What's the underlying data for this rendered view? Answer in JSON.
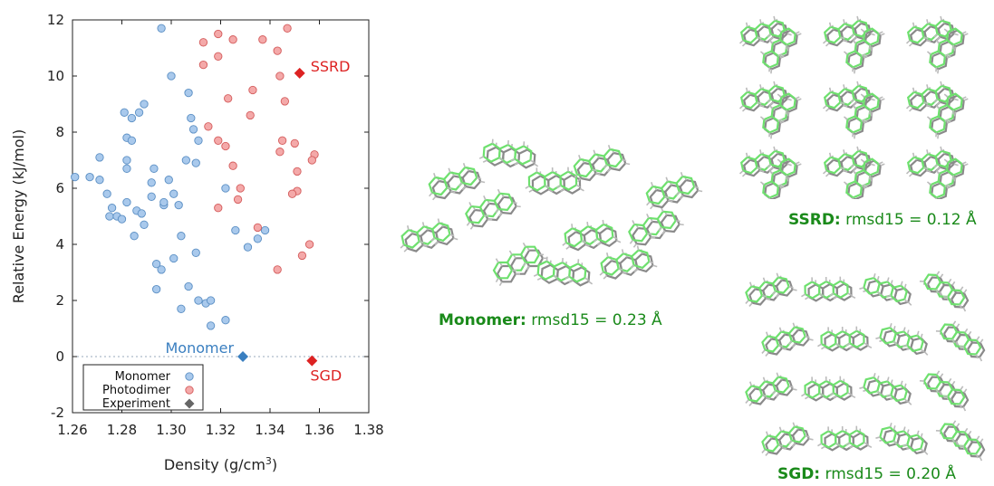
{
  "chart_data": {
    "type": "scatter",
    "xlabel_prefix": "Density (g/cm",
    "xlabel_sup": "3",
    "xlabel_suffix": ")",
    "ylabel": "Relative Energy (kJ/mol)",
    "xlim": [
      1.26,
      1.38
    ],
    "ylim": [
      -2,
      12
    ],
    "x_ticks": [
      1.26,
      1.28,
      1.3,
      1.32,
      1.34,
      1.36,
      1.38
    ],
    "x_tick_labels": [
      "1.26",
      "1.28",
      "1.30",
      "1.32",
      "1.34",
      "1.36",
      "1.38"
    ],
    "y_ticks": [
      -2,
      0,
      2,
      4,
      6,
      8,
      10,
      12
    ],
    "y_tick_labels": [
      "-2",
      "0",
      "2",
      "4",
      "6",
      "8",
      "10",
      "12"
    ],
    "grid": false,
    "legend_position": "bottom-left",
    "reference_line_y": 0,
    "series": [
      {
        "name": "Monomer",
        "marker": "circle",
        "color": "#a9c9ec",
        "edge": "#5b8fc4",
        "points": [
          [
            1.296,
            11.7
          ],
          [
            1.3,
            10.0
          ],
          [
            1.307,
            9.4
          ],
          [
            1.311,
            7.7
          ],
          [
            1.308,
            8.5
          ],
          [
            1.309,
            8.1
          ],
          [
            1.306,
            7.0
          ],
          [
            1.289,
            9.0
          ],
          [
            1.287,
            8.7
          ],
          [
            1.284,
            8.5
          ],
          [
            1.281,
            8.7
          ],
          [
            1.282,
            7.8
          ],
          [
            1.284,
            7.7
          ],
          [
            1.282,
            7.0
          ],
          [
            1.282,
            6.7
          ],
          [
            1.271,
            7.1
          ],
          [
            1.261,
            6.4
          ],
          [
            1.267,
            6.4
          ],
          [
            1.271,
            6.3
          ],
          [
            1.274,
            5.8
          ],
          [
            1.276,
            5.3
          ],
          [
            1.275,
            5.0
          ],
          [
            1.278,
            5.0
          ],
          [
            1.28,
            4.9
          ],
          [
            1.282,
            5.5
          ],
          [
            1.286,
            5.2
          ],
          [
            1.288,
            5.1
          ],
          [
            1.289,
            4.7
          ],
          [
            1.285,
            4.3
          ],
          [
            1.293,
            6.7
          ],
          [
            1.292,
            6.2
          ],
          [
            1.292,
            5.7
          ],
          [
            1.297,
            5.4
          ],
          [
            1.299,
            6.3
          ],
          [
            1.301,
            5.8
          ],
          [
            1.303,
            5.4
          ],
          [
            1.297,
            5.5
          ],
          [
            1.304,
            4.3
          ],
          [
            1.301,
            3.5
          ],
          [
            1.31,
            3.7
          ],
          [
            1.294,
            3.3
          ],
          [
            1.296,
            3.1
          ],
          [
            1.294,
            2.4
          ],
          [
            1.307,
            2.5
          ],
          [
            1.311,
            2.0
          ],
          [
            1.314,
            1.9
          ],
          [
            1.316,
            2.0
          ],
          [
            1.304,
            1.7
          ],
          [
            1.31,
            6.9
          ],
          [
            1.316,
            1.1
          ],
          [
            1.322,
            1.3
          ],
          [
            1.326,
            4.5
          ],
          [
            1.331,
            3.9
          ],
          [
            1.335,
            4.2
          ],
          [
            1.338,
            4.5
          ],
          [
            1.322,
            6.0
          ]
        ]
      },
      {
        "name": "Photodimer",
        "marker": "circle",
        "color": "#f4a9a9",
        "edge": "#d45c5c",
        "points": [
          [
            1.313,
            11.2
          ],
          [
            1.319,
            11.5
          ],
          [
            1.325,
            11.3
          ],
          [
            1.337,
            11.3
          ],
          [
            1.347,
            11.7
          ],
          [
            1.343,
            10.9
          ],
          [
            1.319,
            10.7
          ],
          [
            1.313,
            10.4
          ],
          [
            1.344,
            10.0
          ],
          [
            1.323,
            9.2
          ],
          [
            1.333,
            9.5
          ],
          [
            1.346,
            9.1
          ],
          [
            1.315,
            8.2
          ],
          [
            1.332,
            8.6
          ],
          [
            1.319,
            7.7
          ],
          [
            1.322,
            7.5
          ],
          [
            1.345,
            7.7
          ],
          [
            1.35,
            7.6
          ],
          [
            1.344,
            7.3
          ],
          [
            1.358,
            7.2
          ],
          [
            1.357,
            7.0
          ],
          [
            1.325,
            6.8
          ],
          [
            1.351,
            6.6
          ],
          [
            1.328,
            6.0
          ],
          [
            1.327,
            5.6
          ],
          [
            1.351,
            5.9
          ],
          [
            1.349,
            5.8
          ],
          [
            1.319,
            5.3
          ],
          [
            1.335,
            4.6
          ],
          [
            1.356,
            4.0
          ],
          [
            1.353,
            3.6
          ],
          [
            1.343,
            3.1
          ]
        ]
      },
      {
        "name": "Experiment",
        "marker": "diamond",
        "color": "#666666",
        "points": []
      }
    ],
    "experimental_points": [
      {
        "label": "SSRD",
        "x": 1.352,
        "y": 10.1,
        "color": "#dd2222"
      },
      {
        "label": "Monomer",
        "x": 1.329,
        "y": 0.0,
        "color": "#3a7fc0"
      },
      {
        "label": "SGD",
        "x": 1.357,
        "y": -0.15,
        "color": "#dd2222"
      }
    ]
  },
  "captions": {
    "monomer": {
      "bold": "Monomer:",
      "rest": " rmsd15 = 0.23 Å"
    },
    "ssrd": {
      "bold": "SSRD:",
      "rest": " rmsd15 = 0.12 Å"
    },
    "sgd": {
      "bold": "SGD:",
      "rest": " rmsd15 = 0.20 Å"
    }
  },
  "colors": {
    "caption": "#1a8a1a",
    "structure_green": "#6ee06e",
    "structure_grey": "#8a8a8a"
  }
}
